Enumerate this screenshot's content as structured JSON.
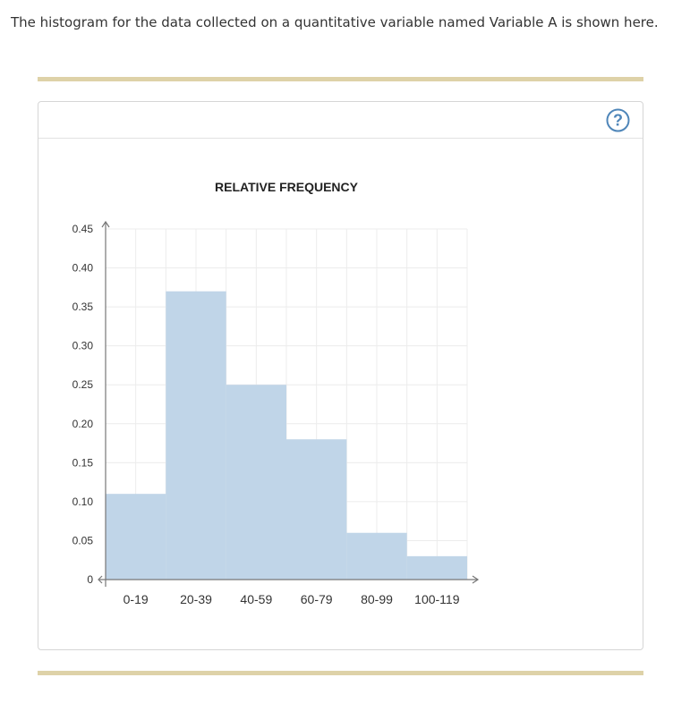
{
  "intro_text": "The histogram for the data collected on a quantitative variable named Variable A is shown here.",
  "help": {
    "glyph": "?",
    "icon": "question-circle-icon",
    "color": "#4f86b9"
  },
  "colors": {
    "bar": "#c0d5e8",
    "grid": "#ececec",
    "axis": "#777777",
    "rule": "#ded2a8"
  },
  "chart_data": {
    "type": "bar",
    "title": "RELATIVE FREQUENCY",
    "xlabel": "",
    "ylabel": "",
    "categories": [
      "0-19",
      "20-39",
      "40-59",
      "60-79",
      "80-99",
      "100-119"
    ],
    "values": [
      0.11,
      0.37,
      0.25,
      0.18,
      0.06,
      0.03
    ],
    "ylim": [
      0,
      0.45
    ],
    "yticks": [
      "0",
      "0.05",
      "0.10",
      "0.15",
      "0.20",
      "0.25",
      "0.30",
      "0.35",
      "0.40",
      "0.45"
    ],
    "grid": true,
    "bar_gap": "none (histogram)"
  }
}
